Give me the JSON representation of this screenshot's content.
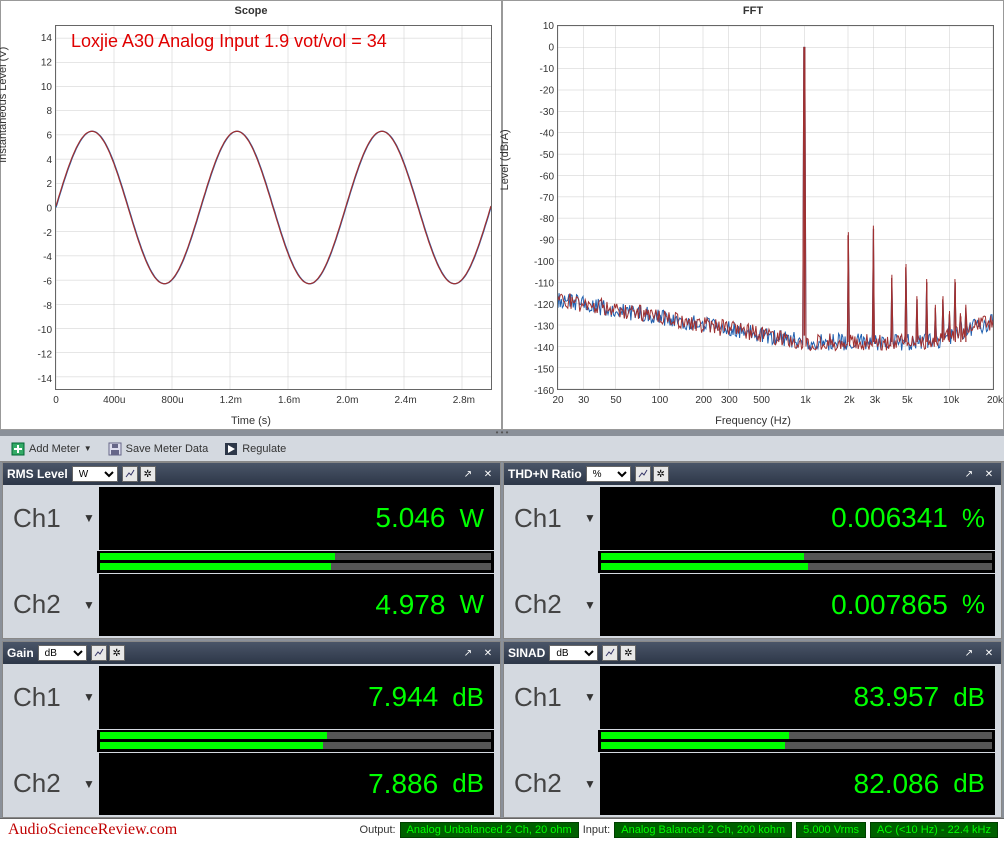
{
  "scope": {
    "title": "Scope",
    "annotation": "Loxjie A30 Analog Input 1.9 vot/vol = 34",
    "xlabel": "Time (s)",
    "ylabel": "Instantaneous Level (V)",
    "xlim": [
      0,
      0.003
    ],
    "ylim": [
      -15,
      15
    ],
    "xticks": [
      "0",
      "400u",
      "800u",
      "1.2m",
      "1.6m",
      "2.0m",
      "2.4m",
      "2.8m"
    ],
    "xtick_vals": [
      0,
      0.0004,
      0.0008,
      0.0012,
      0.0016,
      0.002,
      0.0024,
      0.0028
    ],
    "yticks": [
      -14,
      -12,
      -10,
      -8,
      -6,
      -4,
      -2,
      0,
      2,
      4,
      6,
      8,
      10,
      12,
      14
    ],
    "amplitude": 6.3,
    "freq_hz": 1000,
    "colors": [
      "#2060b0",
      "#a03030"
    ],
    "bg": "#ffffff",
    "grid_color": "#cccccc",
    "line_width": 1.2
  },
  "fft": {
    "title": "FFT",
    "xlabel": "Frequency (Hz)",
    "ylabel": "Level (dBrA)",
    "xlim": [
      20,
      20000
    ],
    "ylim": [
      -160,
      10
    ],
    "xticks": [
      "20",
      "30",
      "50",
      "100",
      "200",
      "300",
      "500",
      "1k",
      "2k",
      "3k",
      "5k",
      "10k",
      "20k"
    ],
    "xtick_vals": [
      20,
      30,
      50,
      100,
      200,
      300,
      500,
      1000,
      2000,
      3000,
      5000,
      10000,
      20000
    ],
    "yticks": [
      -160,
      -150,
      -140,
      -130,
      -120,
      -110,
      -100,
      -90,
      -80,
      -70,
      -60,
      -50,
      -40,
      -30,
      -20,
      -10,
      0,
      10
    ],
    "noise_floor_start": -118,
    "noise_floor_end": -138,
    "noise_floor_rise_end": -128,
    "colors": [
      "#2060b0",
      "#a03030"
    ],
    "fundamental": {
      "freq": 1000,
      "level": 0
    },
    "harmonics": [
      {
        "freq": 2000,
        "level": -88
      },
      {
        "freq": 3000,
        "level": -85
      },
      {
        "freq": 4000,
        "level": -108
      },
      {
        "freq": 5000,
        "level": -103
      },
      {
        "freq": 6000,
        "level": -118
      },
      {
        "freq": 7000,
        "level": -110
      },
      {
        "freq": 8000,
        "level": -122
      },
      {
        "freq": 9000,
        "level": -118
      },
      {
        "freq": 10000,
        "level": -125
      },
      {
        "freq": 11000,
        "level": -110
      },
      {
        "freq": 12000,
        "level": -126
      },
      {
        "freq": 13000,
        "level": -122
      }
    ],
    "bg": "#ffffff",
    "grid_color": "#cccccc",
    "line_width": 1.0
  },
  "toolbar": {
    "add_meter": "Add Meter",
    "save_data": "Save Meter Data",
    "regulate": "Regulate"
  },
  "meters": {
    "rms": {
      "title": "RMS Level",
      "unit_select": "W",
      "ch1": {
        "label": "Ch1",
        "value": "5.046",
        "unit": "W",
        "bar": 0.6
      },
      "ch2": {
        "label": "Ch2",
        "value": "4.978",
        "unit": "W",
        "bar": 0.59
      }
    },
    "thdn": {
      "title": "THD+N Ratio",
      "unit_select": "%",
      "ch1": {
        "label": "Ch1",
        "value": "0.006341",
        "unit": "%",
        "bar": 0.52
      },
      "ch2": {
        "label": "Ch2",
        "value": "0.007865",
        "unit": "%",
        "bar": 0.53
      }
    },
    "gain": {
      "title": "Gain",
      "unit_select": "dB",
      "ch1": {
        "label": "Ch1",
        "value": "7.944",
        "unit": "dB",
        "bar": 0.58
      },
      "ch2": {
        "label": "Ch2",
        "value": "7.886",
        "unit": "dB",
        "bar": 0.57
      }
    },
    "sinad": {
      "title": "SINAD",
      "unit_select": "dB",
      "ch1": {
        "label": "Ch1",
        "value": "83.957",
        "unit": "dB",
        "bar": 0.48
      },
      "ch2": {
        "label": "Ch2",
        "value": "82.086",
        "unit": "dB",
        "bar": 0.47
      }
    }
  },
  "status": {
    "brand": "AudioScienceReview.com",
    "output_label": "Output:",
    "output_value": "Analog Unbalanced 2 Ch, 20 ohm",
    "input_label": "Input:",
    "input_value": "Analog Balanced 2 Ch, 200 kohm",
    "vrms": "5.000 Vrms",
    "bw": "AC (<10 Hz) - 22.4 kHz"
  },
  "colors": {
    "meter_value": "#00ff00",
    "meter_bg": "#000000",
    "panel_bg": "#d4d9e0",
    "header_bg": "#3a4556",
    "annotation": "#e00000",
    "brand": "#c00000"
  }
}
